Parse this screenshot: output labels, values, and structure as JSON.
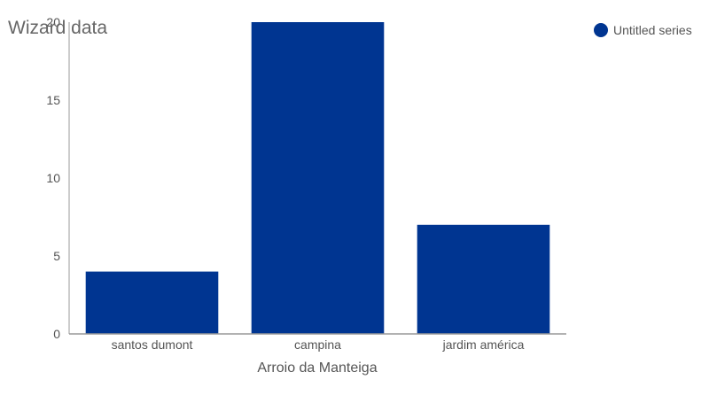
{
  "chart_data": {
    "type": "bar",
    "title": "Wizard data",
    "xlabel": "Arroio da Manteiga",
    "ylabel": "",
    "categories": [
      "santos dumont",
      "campina",
      "jardim américa"
    ],
    "series": [
      {
        "name": "Untitled series",
        "values": [
          4,
          20,
          7
        ],
        "color": "#003591"
      }
    ],
    "ylim": [
      0,
      20
    ],
    "yticks": [
      0,
      5,
      10,
      15,
      20
    ],
    "grid": false,
    "legend": "top-right"
  }
}
